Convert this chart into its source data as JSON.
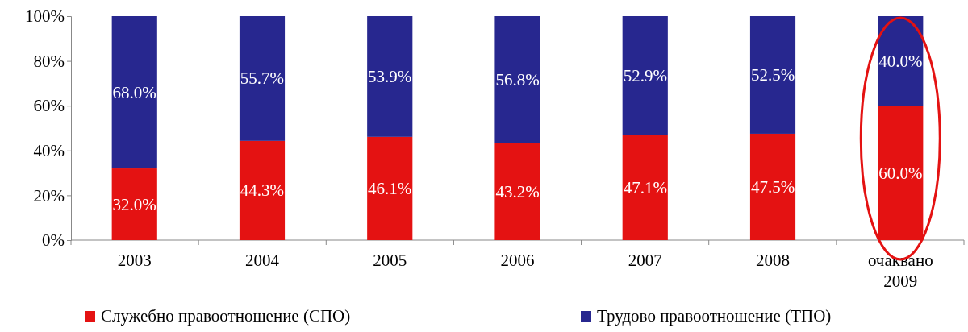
{
  "chart_data": {
    "type": "bar",
    "stacked": true,
    "categories": [
      "2003",
      "2004",
      "2005",
      "2006",
      "2007",
      "2008",
      "очаквано 2009"
    ],
    "series": [
      {
        "name": "Служебно правоотношение (СПО)",
        "color": "#e41212",
        "values": [
          32.0,
          44.3,
          46.1,
          43.2,
          47.1,
          47.5,
          60.0
        ],
        "value_labels": [
          "32.0%",
          "44.3%",
          "46.1%",
          "43.2%",
          "47.1%",
          "47.5%",
          "60.0%"
        ]
      },
      {
        "name": "Трудово правоотношение (ТПО)",
        "color": "#27278f",
        "values": [
          68.0,
          55.7,
          53.9,
          56.8,
          52.9,
          52.5,
          40.0
        ],
        "value_labels": [
          "68.0%",
          "55.7%",
          "53.9%",
          "56.8%",
          "52.9%",
          "52.5%",
          "40.0%"
        ]
      }
    ],
    "ylim": [
      0,
      100
    ],
    "yticks": [
      {
        "value": 0,
        "label": "0%"
      },
      {
        "value": 20,
        "label": "20%"
      },
      {
        "value": 40,
        "label": "40%"
      },
      {
        "value": 60,
        "label": "60%"
      },
      {
        "value": 80,
        "label": "80%"
      },
      {
        "value": 100,
        "label": "100%"
      }
    ],
    "grid": false,
    "legend": "bottom"
  }
}
